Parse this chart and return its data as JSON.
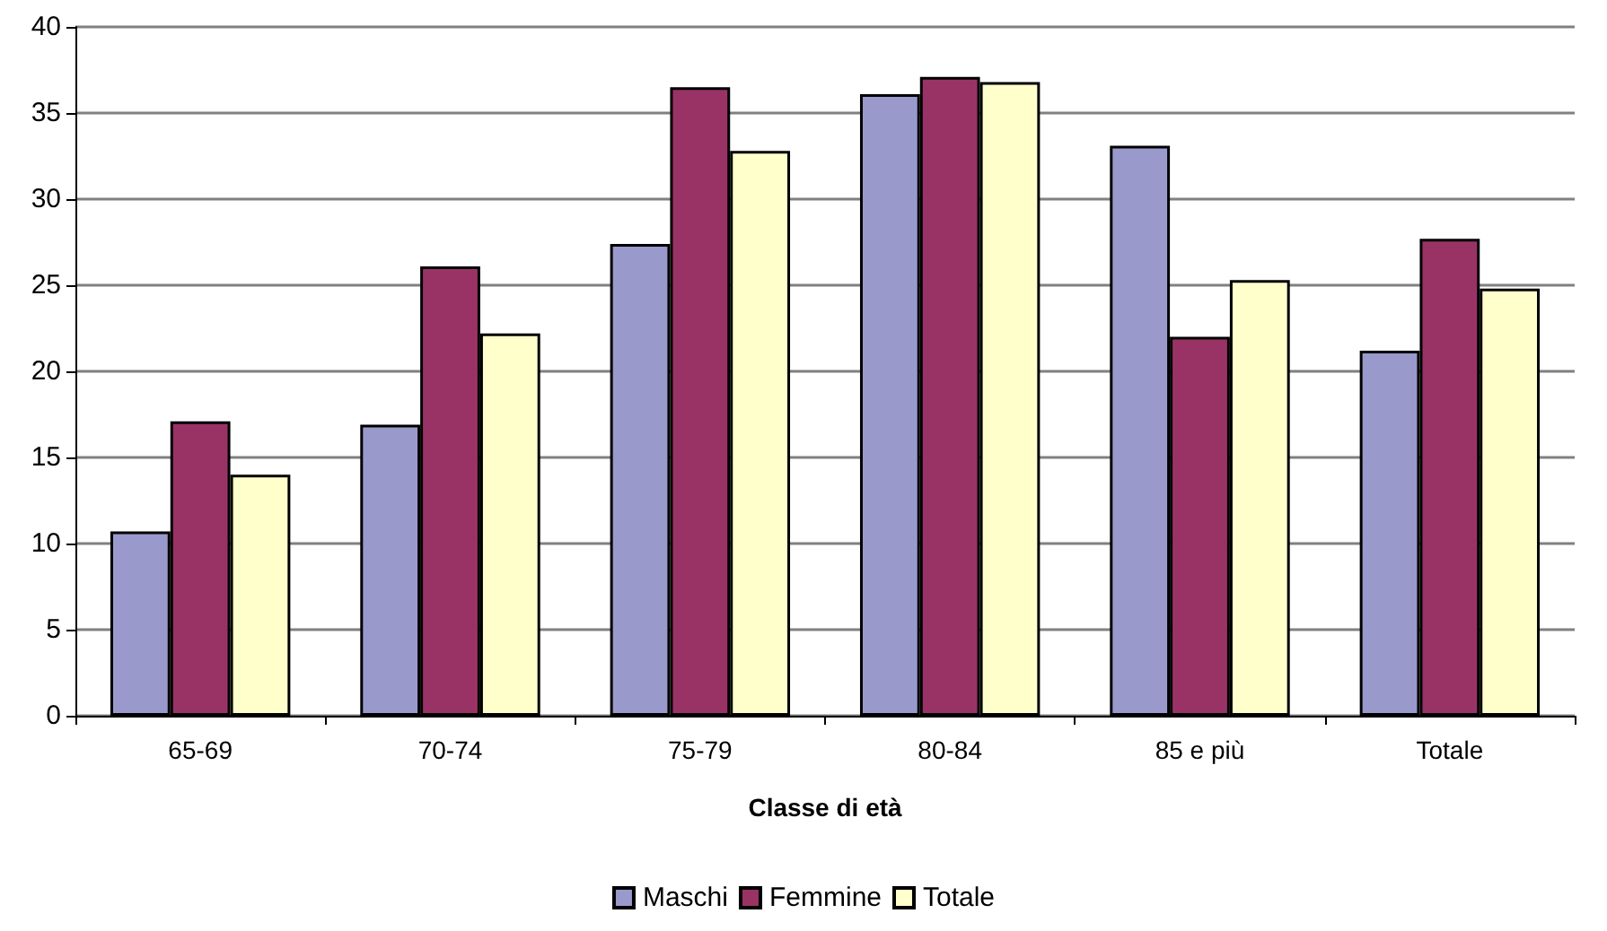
{
  "chart_data": {
    "type": "bar",
    "xlabel": "Classe di età",
    "categories": [
      "65-69",
      "70-74",
      "75-79",
      "80-84",
      "85 e più",
      "Totale"
    ],
    "series": [
      {
        "name": "Maschi",
        "color": "#9999cc",
        "values": [
          10.7,
          16.9,
          27.4,
          36.1,
          33.1,
          21.2
        ]
      },
      {
        "name": "Femmine",
        "color": "#993366",
        "values": [
          17.1,
          26.1,
          36.5,
          37.1,
          22.0,
          27.7
        ]
      },
      {
        "name": "Totale",
        "color": "#ffffcc",
        "values": [
          14.0,
          22.2,
          32.8,
          36.8,
          25.3,
          24.8
        ]
      }
    ],
    "ylim": [
      0,
      40
    ],
    "yticks": [
      0,
      5,
      10,
      15,
      20,
      25,
      30,
      35,
      40
    ],
    "grid": "y",
    "legend": "bottom"
  }
}
